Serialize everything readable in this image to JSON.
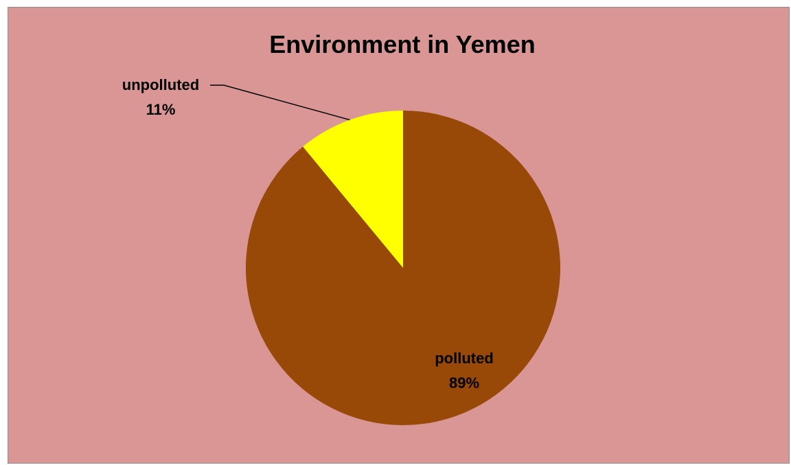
{
  "chart_data": {
    "type": "pie",
    "title": "Environment in Yemen",
    "slices": [
      {
        "label": "unpolluted",
        "value": 11,
        "value_label": "11%",
        "color": "#ffff00"
      },
      {
        "label": "polluted",
        "value": 89,
        "value_label": "89%",
        "color": "#984807"
      }
    ],
    "start_angle_deg": 0,
    "direction": "counterclockwise",
    "background_color": "#d99694",
    "legend": "none"
  }
}
